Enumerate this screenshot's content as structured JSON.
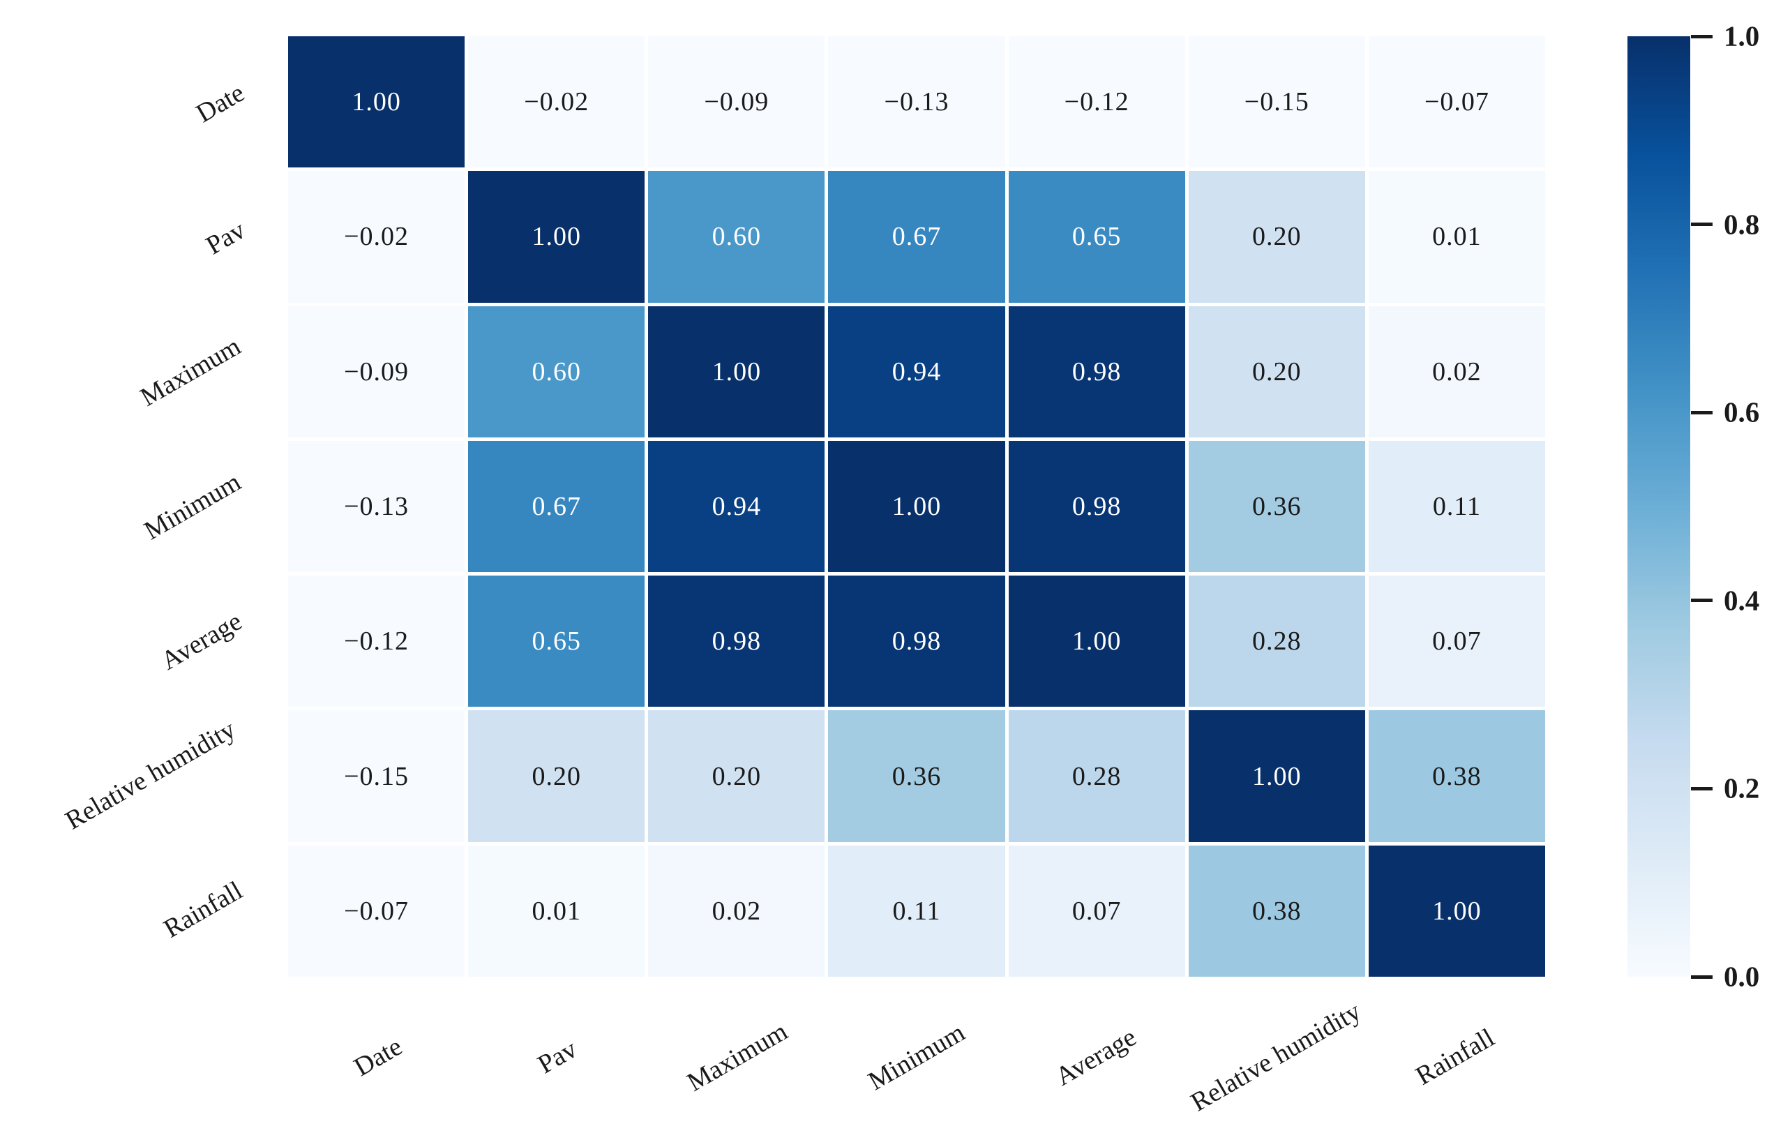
{
  "chart_data": {
    "type": "heatmap",
    "categories": [
      "Date",
      "Pav",
      "Maximum",
      "Minimum",
      "Average",
      "Relative humidity",
      "Rainfall"
    ],
    "matrix": [
      [
        1.0,
        -0.02,
        -0.09,
        -0.13,
        -0.12,
        -0.15,
        -0.07
      ],
      [
        -0.02,
        1.0,
        0.6,
        0.67,
        0.65,
        0.2,
        0.01
      ],
      [
        -0.09,
        0.6,
        1.0,
        0.94,
        0.98,
        0.2,
        0.02
      ],
      [
        -0.13,
        0.67,
        0.94,
        1.0,
        0.98,
        0.36,
        0.11
      ],
      [
        -0.12,
        0.65,
        0.98,
        0.98,
        1.0,
        0.28,
        0.07
      ],
      [
        -0.15,
        0.2,
        0.2,
        0.36,
        0.28,
        1.0,
        0.38
      ],
      [
        -0.07,
        0.01,
        0.02,
        0.11,
        0.07,
        0.38,
        1.0
      ]
    ],
    "value_decimals": 2,
    "minus_glyph": "−",
    "colormap": {
      "name": "Blues",
      "stops": [
        "#f7fbff",
        "#deebf7",
        "#c6dbef",
        "#9ecae1",
        "#6baed6",
        "#4292c6",
        "#2171b5",
        "#08519c",
        "#08306b"
      ]
    },
    "colorbar": {
      "min": 0.0,
      "max": 1.0,
      "position": "right",
      "tick_labels": [
        "1.0",
        "0.8",
        "0.6",
        "0.4",
        "0.2",
        "0.0"
      ]
    },
    "grid": {
      "line_color": "#ffffff"
    },
    "text_colors": {
      "on_light": "#1a1a1a",
      "on_dark": "#ffffff",
      "threshold": 0.5
    }
  }
}
